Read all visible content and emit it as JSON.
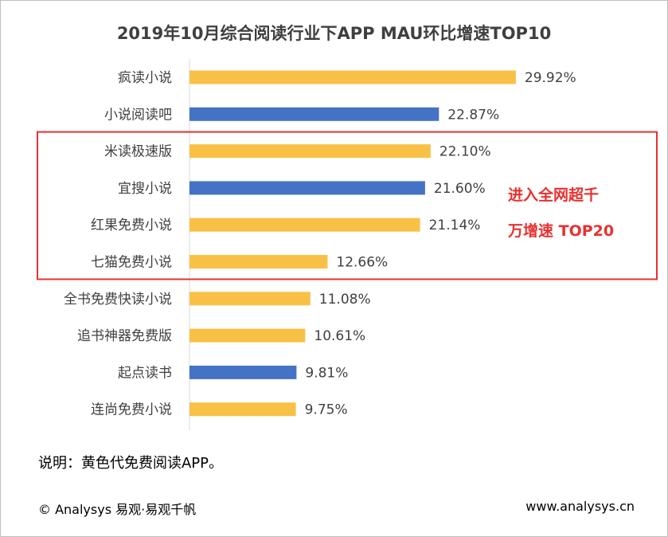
{
  "chart_data": {
    "type": "bar",
    "orientation": "horizontal",
    "title": "2019年10月综合阅读行业下APP MAU环比增速TOP10",
    "categories": [
      "疯读小说",
      "小说阅读吧",
      "米读极速版",
      "宜搜小说",
      "红果免费小说",
      "七猫免费小说",
      "全书免费快读小说",
      "追书神器免费版",
      "起点读书",
      "连尚免费小说"
    ],
    "values": [
      29.92,
      22.87,
      22.1,
      21.6,
      21.14,
      12.66,
      11.08,
      10.61,
      9.81,
      9.75
    ],
    "value_labels": [
      "29.92%",
      "22.87%",
      "22.10%",
      "21.60%",
      "21.14%",
      "12.66%",
      "11.08%",
      "10.61%",
      "9.81%",
      "9.75%"
    ],
    "is_free": [
      true,
      false,
      true,
      false,
      true,
      true,
      true,
      true,
      false,
      true
    ],
    "unit": "%",
    "xlim": [
      0,
      30
    ],
    "grid": false,
    "highlight": {
      "categories": [
        "米读极速版",
        "宜搜小说",
        "红果免费小说",
        "七猫免费小说"
      ],
      "annotation_lines": [
        "进入全网超千",
        "万增速 TOP20"
      ],
      "color": "#e8312f"
    },
    "colors": {
      "free": "#f8c146",
      "paid": "#4472c4",
      "axis": "#d9d9d9"
    }
  },
  "note": "说明：黄色代免费阅读APP。",
  "footer": {
    "left": "© Analysys 易观·易观千帆",
    "right": "www.analysys.cn"
  }
}
